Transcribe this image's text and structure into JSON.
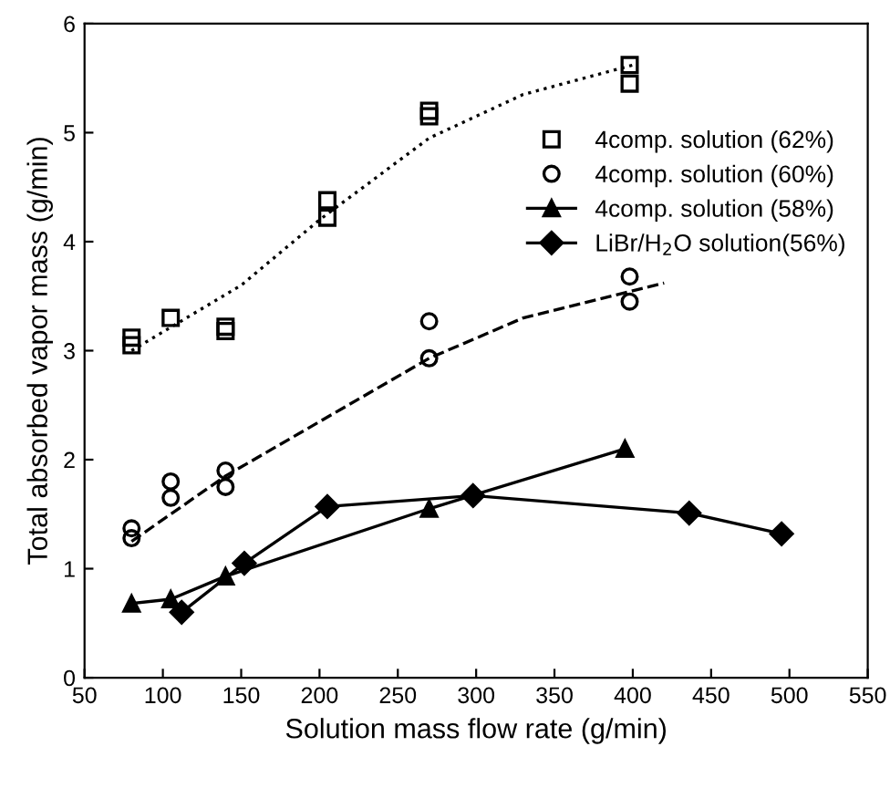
{
  "chart_data": {
    "type": "scatter",
    "xlabel": "Solution mass flow rate (g/min)",
    "ylabel": "Total absorbed vapor mass (g/min)",
    "xlim": [
      50,
      550
    ],
    "ylim": [
      0,
      6
    ],
    "xticks": [
      50,
      100,
      150,
      200,
      250,
      300,
      350,
      400,
      450,
      500,
      550
    ],
    "yticks": [
      0,
      1,
      2,
      3,
      4,
      5,
      6
    ],
    "grid": false,
    "legend": "top right",
    "series": [
      {
        "name": "4comp. solution (62%)",
        "marker": "square",
        "color": "#000000",
        "x": [
          80,
          80,
          105,
          140,
          140,
          205,
          205,
          270,
          270,
          398,
          398
        ],
        "values": [
          3.12,
          3.05,
          3.3,
          3.22,
          3.18,
          4.38,
          4.22,
          5.2,
          5.15,
          5.62,
          5.45
        ]
      },
      {
        "name": "4comp. solution (60%)",
        "marker": "circle",
        "color": "#000000",
        "x": [
          80,
          80,
          105,
          105,
          140,
          140,
          270,
          270,
          398,
          398
        ],
        "values": [
          1.37,
          1.28,
          1.8,
          1.65,
          1.9,
          1.75,
          3.27,
          2.93,
          3.68,
          3.45
        ]
      },
      {
        "name": "4comp. solution (58%)",
        "type": "line",
        "marker": "triangle",
        "line_style": "solid",
        "color": "#000000",
        "x": [
          80,
          105,
          140,
          270,
          395
        ],
        "values": [
          0.68,
          0.72,
          0.93,
          1.55,
          2.1
        ]
      },
      {
        "name": "LiBr/H$_{2}$O solution(56%)",
        "type": "line",
        "marker": "diamond",
        "line_style": "solid",
        "color": "#000000",
        "x": [
          112,
          152,
          205,
          298,
          436,
          495
        ],
        "values": [
          0.6,
          1.05,
          1.57,
          1.67,
          1.51,
          1.32
        ]
      },
      {
        "type": "line",
        "marker": "none",
        "line_style": "dotted",
        "color": "#000000",
        "x": [
          80,
          150,
          200,
          270,
          330,
          400
        ],
        "values": [
          3.0,
          3.6,
          4.2,
          4.95,
          5.35,
          5.62
        ]
      },
      {
        "type": "line",
        "marker": "none",
        "line_style": "dashed",
        "color": "#000000",
        "x": [
          80,
          140,
          270,
          330,
          420
        ],
        "values": [
          1.25,
          1.85,
          2.93,
          3.3,
          3.62
        ]
      }
    ]
  }
}
